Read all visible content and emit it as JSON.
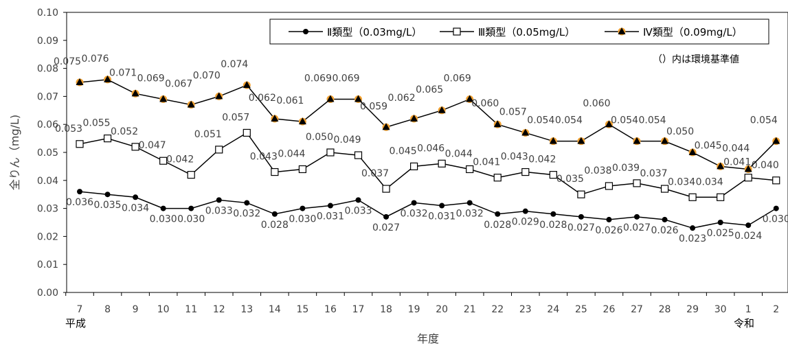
{
  "chart_data": {
    "type": "line",
    "categories": [
      "7",
      "8",
      "9",
      "10",
      "11",
      "12",
      "13",
      "14",
      "15",
      "16",
      "17",
      "18",
      "19",
      "20",
      "21",
      "22",
      "23",
      "24",
      "25",
      "26",
      "27",
      "28",
      "29",
      "30",
      "1",
      "2"
    ],
    "era_labels": {
      "start": "平成",
      "end": "令和"
    },
    "xlabel": "年度",
    "ylabel": "全りん（mg/L)",
    "ylim": [
      0,
      0.1
    ],
    "yticks": [
      "0.00",
      "0.01",
      "0.02",
      "0.03",
      "0.04",
      "0.05",
      "0.06",
      "0.07",
      "0.08",
      "0.09",
      "0.10"
    ],
    "legend_position": "top-right",
    "note": "（）内は環境基準値",
    "series": [
      {
        "name": "Ⅱ類型（0.03mg/L）",
        "marker": "filled-circle",
        "values": [
          0.036,
          0.035,
          0.034,
          0.03,
          0.03,
          0.033,
          0.032,
          0.028,
          0.03,
          0.031,
          0.033,
          0.027,
          0.032,
          0.031,
          0.032,
          0.028,
          0.029,
          0.028,
          0.027,
          0.026,
          0.027,
          0.026,
          0.023,
          0.025,
          0.024,
          0.03
        ],
        "labels": [
          "0.036",
          "0.035",
          "0.034",
          "0.030",
          "0.030",
          "0.033",
          "0.032",
          "0.028",
          "0.030",
          "0.031",
          "0.033",
          "0.027",
          "0.032",
          "0.031",
          "0.032",
          "0.028",
          "0.029",
          "0.028",
          "0.027",
          "0.026",
          "0.027",
          "0.026",
          "0.023",
          "0.025",
          "0.024",
          "0.030"
        ]
      },
      {
        "name": "Ⅲ類型（0.05mg/L）",
        "marker": "open-square",
        "values": [
          0.053,
          0.055,
          0.052,
          0.047,
          0.042,
          0.051,
          0.057,
          0.043,
          0.044,
          0.05,
          0.049,
          0.037,
          0.045,
          0.046,
          0.044,
          0.041,
          0.043,
          0.042,
          0.035,
          0.038,
          0.039,
          0.037,
          0.034,
          0.034,
          0.041,
          0.04
        ],
        "labels": [
          "0.053",
          "0.055",
          "0.052",
          "0.047",
          "0.042",
          "0.051",
          "0.057",
          "0.043",
          "0.044",
          "0.050",
          "0.049",
          "0.037",
          "0.045",
          "0.046",
          "0.044",
          "0.041",
          "0.043",
          "0.042",
          "0.035",
          "0.038",
          "0.039",
          "0.037",
          "0.034",
          "0.034",
          "0.041",
          "0.040"
        ]
      },
      {
        "name": "Ⅳ類型（0.09mg/L）",
        "marker": "filled-triangle",
        "values": [
          0.075,
          0.076,
          0.071,
          0.069,
          0.067,
          0.07,
          0.074,
          0.062,
          0.061,
          0.069,
          0.069,
          0.059,
          0.062,
          0.065,
          0.069,
          0.06,
          0.057,
          0.054,
          0.054,
          0.06,
          0.054,
          0.054,
          0.05,
          0.045,
          0.044,
          0.054
        ],
        "labels": [
          "0.075",
          "0.076",
          "0.071",
          "0.069",
          "0.067",
          "0.070",
          "0.074",
          "0.062",
          "0.061",
          "0.069",
          "0.069",
          "0.059",
          "0.062",
          "0.065",
          "0.069",
          "0.060",
          "0.057",
          "0.054",
          "0.054",
          "0.060",
          "0.054",
          "0.054",
          "0.050",
          "0.045",
          "0.044",
          "0.054"
        ]
      }
    ],
    "colors": {
      "line": "#000000",
      "triangle_halo": "#f0a030",
      "axis": "#000000",
      "text": "#404040"
    }
  }
}
